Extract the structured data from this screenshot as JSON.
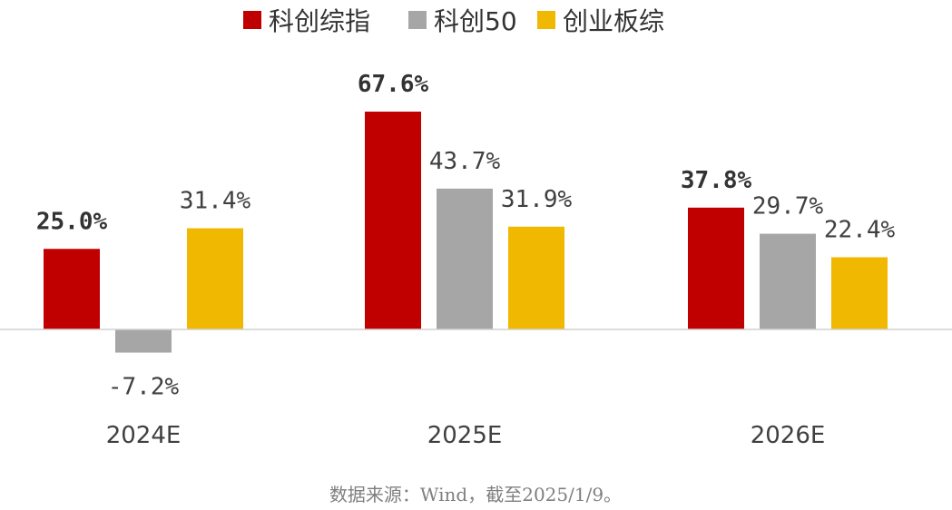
{
  "chart_data": {
    "type": "bar",
    "categories": [
      "2024E",
      "2025E",
      "2026E"
    ],
    "series": [
      {
        "name": "科创综指",
        "color": "#C00000",
        "values": [
          25.0,
          67.6,
          37.8
        ],
        "labels": [
          "25.0%",
          "67.6%",
          "37.8%"
        ],
        "bold": true
      },
      {
        "name": "科创50",
        "color": "#A6A6A6",
        "values": [
          -7.2,
          43.7,
          29.7
        ],
        "labels": [
          "-7.2%",
          "43.7%",
          "29.7%"
        ],
        "bold": false
      },
      {
        "name": "创业板综",
        "color": "#F0B800",
        "values": [
          31.4,
          31.9,
          22.4
        ],
        "labels": [
          "31.4%",
          "31.9%",
          "22.4%"
        ],
        "bold": false
      }
    ],
    "legend_position": "top-center",
    "grid": false,
    "ylim": [
      -10,
      75
    ]
  },
  "source_note": "数据来源：Wind，截至2025/1/9。"
}
